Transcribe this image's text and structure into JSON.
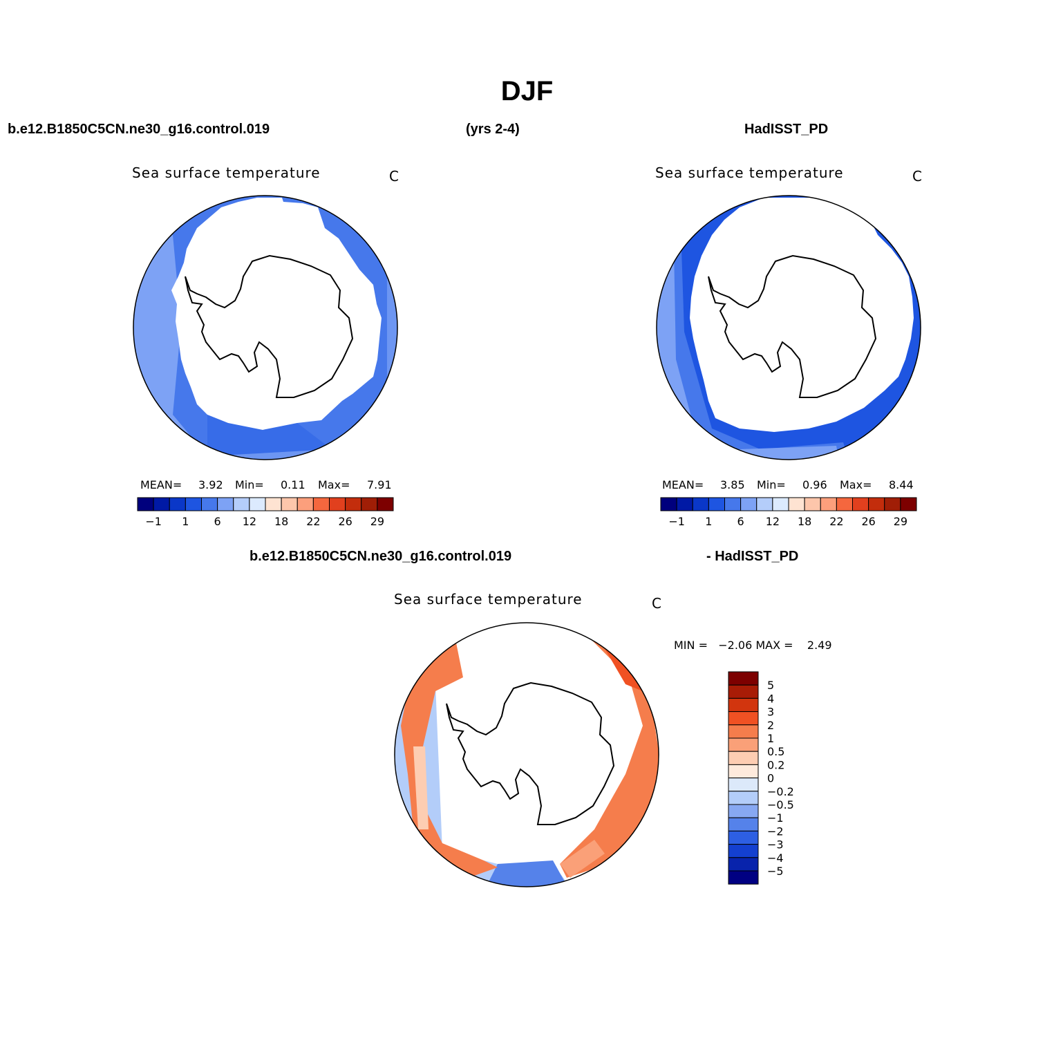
{
  "figure": {
    "season": "DJF",
    "case_name": "b.e12.B1850C5CN.ne30_g16.control.019",
    "years": "(yrs 2-4)",
    "obs_name": "HadISST_PD",
    "diff_case": "b.e12.B1850C5CN.ne30_g16.control.019",
    "diff_obs": "- HadISST_PD"
  },
  "panels": {
    "model": {
      "title": "Sea surface temperature",
      "units": "C",
      "mean_label": "MEAN=",
      "mean": "3.92",
      "min_label": "Min=",
      "min": "0.11",
      "max_label": "Max=",
      "max": "7.91"
    },
    "obs": {
      "title": "Sea surface temperature",
      "units": "C",
      "mean_label": "MEAN=",
      "mean": "3.85",
      "min_label": "Min=",
      "min": "0.96",
      "max_label": "Max=",
      "max": "8.44"
    },
    "diff": {
      "title": "Sea surface temperature",
      "units": "C",
      "stats": "MIN =   −2.06 MAX =    2.49"
    }
  },
  "colorbars": {
    "sst_colors": [
      "#00007d",
      "#0019a5",
      "#0a37c8",
      "#1e55e1",
      "#4678eb",
      "#7da2f5",
      "#b4cdfa",
      "#dceafe",
      "#fee3d2",
      "#fdc6ab",
      "#fc9f7c",
      "#f5673e",
      "#e1401e",
      "#c32d0c",
      "#a01e06",
      "#7d0000"
    ],
    "sst_ticks": [
      "−1",
      "1",
      "6",
      "12",
      "18",
      "22",
      "26",
      "29"
    ],
    "diff_colors": [
      "#7d0000",
      "#a81c06",
      "#d2350e",
      "#f05123",
      "#f57d4c",
      "#faa078",
      "#fdcdb2",
      "#feeadc",
      "#dce9fa",
      "#b3cdf9",
      "#87a8f2",
      "#5582ea",
      "#2d5fe3",
      "#1440d0",
      "#0823ac",
      "#000082"
    ],
    "diff_ticks": [
      "5",
      "4",
      "3",
      "2",
      "1",
      "0.5",
      "0.2",
      "0",
      "−0.2",
      "−0.5",
      "−1",
      "−2",
      "−3",
      "−4",
      "−5"
    ]
  }
}
